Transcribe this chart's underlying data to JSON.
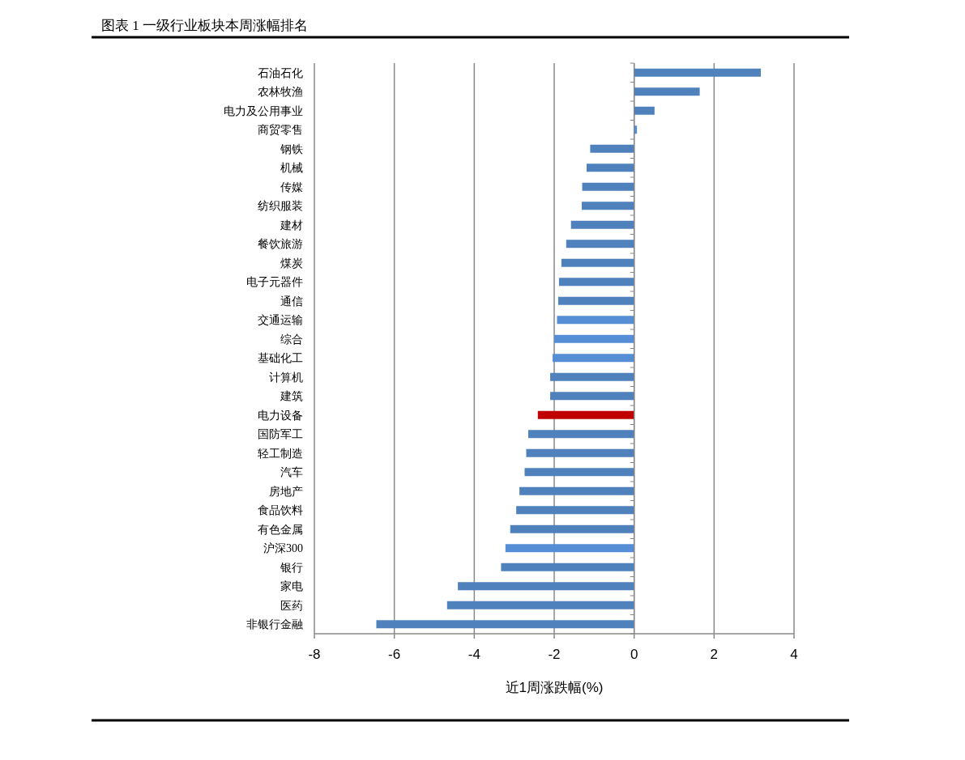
{
  "chart_data": {
    "type": "bar",
    "orientation": "horizontal",
    "title": "图表 1 一级行业板块本周涨幅排名",
    "xlabel": "近1周涨跌幅(%)",
    "categories": [
      "石油石化",
      "农林牧渔",
      "电力及公用事业",
      "商贸零售",
      "钢铁",
      "机械",
      "传媒",
      "纺织服装",
      "建材",
      "餐饮旅游",
      "煤炭",
      "电子元器件",
      "通信",
      "交通运输",
      "综合",
      "基础化工",
      "计算机",
      "建筑",
      "电力设备",
      "国防军工",
      "轻工制造",
      "汽车",
      "房地产",
      "食品饮料",
      "有色金属",
      "沪深300",
      "银行",
      "家电",
      "医药",
      "非银行金融"
    ],
    "values": [
      3.17,
      1.64,
      0.51,
      0.07,
      -1.1,
      -1.19,
      -1.3,
      -1.31,
      -1.58,
      -1.7,
      -1.82,
      -1.88,
      -1.9,
      -1.93,
      -2.0,
      -2.04,
      -2.1,
      -2.1,
      -2.41,
      -2.65,
      -2.7,
      -2.74,
      -2.87,
      -2.95,
      -3.1,
      -3.22,
      -3.33,
      -4.41,
      -4.68,
      -6.45
    ],
    "colors": [
      "#4f81bd",
      "#4f81bd",
      "#4f81bd",
      "#558ed5",
      "#4f81bd",
      "#4f81bd",
      "#4f81bd",
      "#4f81bd",
      "#4f81bd",
      "#4f81bd",
      "#4f81bd",
      "#4f81bd",
      "#4f81bd",
      "#558ed5",
      "#558ed5",
      "#558ed5",
      "#4f81bd",
      "#4f81bd",
      "#c00000",
      "#4f81bd",
      "#4f81bd",
      "#4f81bd",
      "#4f81bd",
      "#4f81bd",
      "#4f81bd",
      "#558ed5",
      "#4f81bd",
      "#4f81bd",
      "#4f81bd",
      "#4f81bd"
    ],
    "xlim": [
      -8,
      4
    ],
    "xticks": [
      -8,
      -6,
      -4,
      -2,
      0,
      2,
      4
    ],
    "grid": "x"
  }
}
